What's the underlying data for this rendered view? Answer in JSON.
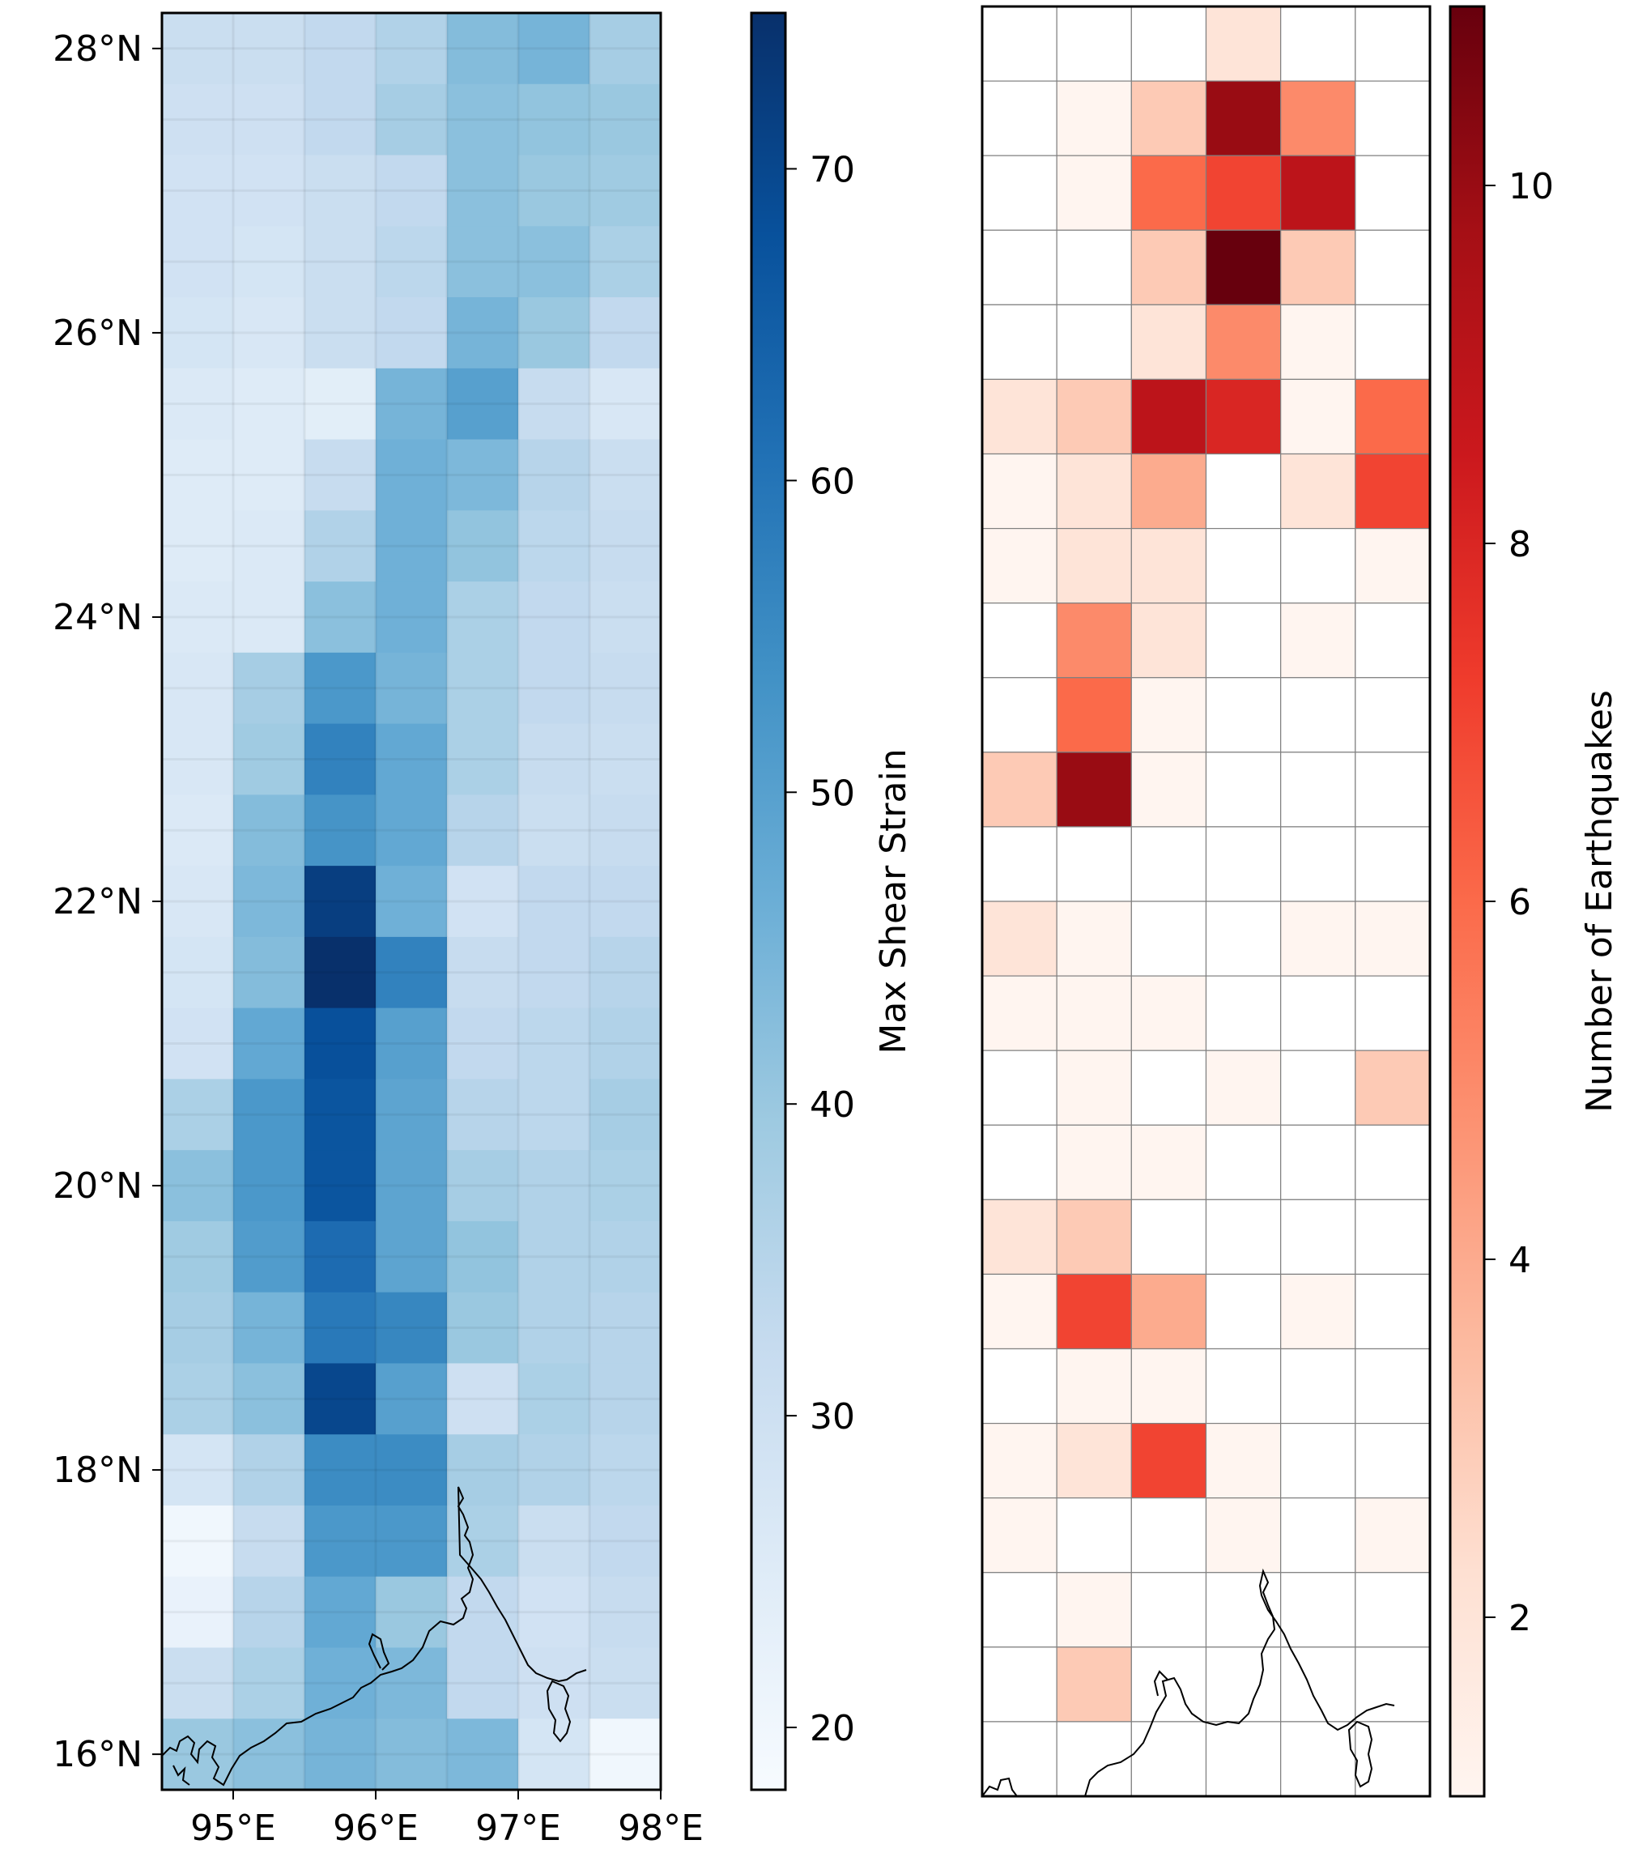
{
  "chart_data": [
    {
      "type": "heatmap",
      "xlabel": "",
      "ylabel": "",
      "x_ticks": [
        "95°E",
        "96°E",
        "97°E",
        "98°E"
      ],
      "y_ticks": [
        "16°N",
        "18°N",
        "20°N",
        "22°N",
        "24°N",
        "26°N",
        "28°N"
      ],
      "xlim": [
        94.5,
        98.0
      ],
      "ylim": [
        15.75,
        28.25
      ],
      "colorbar": {
        "label": "Max Shear Strain",
        "range": [
          18,
          75
        ],
        "ticks": [
          20,
          30,
          40,
          50,
          60,
          70
        ],
        "cmap": "Blues"
      },
      "cell_size_deg": 0.5,
      "rows_top_to_bottom": [
        [
          31,
          31,
          33,
          36,
          43,
          45,
          38
        ],
        [
          30,
          30,
          33,
          38,
          42,
          41,
          40
        ],
        [
          29,
          29,
          31,
          33,
          42,
          40,
          39
        ],
        [
          29,
          28,
          31,
          34,
          42,
          42,
          37
        ],
        [
          28,
          27,
          31,
          33,
          45,
          40,
          33
        ],
        [
          26,
          25,
          24,
          45,
          50,
          32,
          27
        ],
        [
          25,
          25,
          32,
          46,
          44,
          35,
          31
        ],
        [
          25,
          26,
          36,
          46,
          41,
          34,
          32
        ],
        [
          26,
          26,
          42,
          46,
          37,
          33,
          31
        ],
        [
          27,
          38,
          52,
          45,
          37,
          33,
          32
        ],
        [
          27,
          39,
          57,
          48,
          37,
          32,
          31
        ],
        [
          26,
          43,
          53,
          48,
          35,
          31,
          32
        ],
        [
          27,
          44,
          72,
          46,
          29,
          33,
          33
        ],
        [
          28,
          43,
          75,
          57,
          32,
          33,
          35
        ],
        [
          29,
          48,
          68,
          50,
          33,
          34,
          36
        ],
        [
          37,
          52,
          67,
          49,
          35,
          34,
          38
        ],
        [
          42,
          52,
          67,
          49,
          38,
          36,
          37
        ],
        [
          39,
          51,
          62,
          49,
          41,
          36,
          36
        ],
        [
          38,
          45,
          59,
          56,
          40,
          36,
          35
        ],
        [
          37,
          42,
          70,
          50,
          30,
          37,
          35
        ],
        [
          28,
          36,
          55,
          55,
          38,
          36,
          34
        ],
        [
          20,
          32,
          52,
          52,
          37,
          31,
          33
        ],
        [
          22,
          35,
          48,
          40,
          33,
          29,
          32
        ],
        [
          31,
          37,
          46,
          44,
          33,
          30,
          31
        ],
        [
          40,
          42,
          45,
          43,
          44,
          28,
          20
        ]
      ]
    },
    {
      "type": "heatmap",
      "xlabel": "",
      "ylabel": "",
      "colorbar": {
        "label": "Number of Earthquakes",
        "range": [
          1,
          11
        ],
        "ticks": [
          2,
          4,
          6,
          8,
          10
        ],
        "cmap": "Reds"
      },
      "cell_size_deg": 0.5,
      "rows_top_to_bottom": [
        [
          0,
          0,
          0,
          2,
          0,
          0
        ],
        [
          0,
          1,
          3,
          10,
          5,
          0
        ],
        [
          0,
          1,
          6,
          7,
          9,
          0
        ],
        [
          0,
          0,
          3,
          11,
          3,
          0
        ],
        [
          0,
          0,
          2,
          5,
          1,
          0
        ],
        [
          2,
          3,
          9,
          8,
          1,
          6
        ],
        [
          1,
          2,
          4,
          0,
          2,
          7
        ],
        [
          1,
          2,
          2,
          0,
          0,
          1
        ],
        [
          0,
          5,
          2,
          0,
          1,
          0
        ],
        [
          0,
          6,
          1,
          0,
          0,
          0
        ],
        [
          3,
          10,
          1,
          0,
          0,
          0
        ],
        [
          0,
          0,
          0,
          0,
          0,
          0
        ],
        [
          2,
          1,
          0,
          0,
          1,
          1
        ],
        [
          1,
          1,
          1,
          0,
          0,
          0
        ],
        [
          0,
          1,
          0,
          1,
          0,
          3
        ],
        [
          0,
          1,
          1,
          0,
          0,
          0
        ],
        [
          2,
          3,
          0,
          0,
          0,
          0
        ],
        [
          1,
          7,
          4,
          0,
          1,
          0
        ],
        [
          0,
          1,
          1,
          0,
          0,
          0
        ],
        [
          1,
          2,
          7,
          1,
          0,
          0
        ],
        [
          1,
          0,
          0,
          1,
          0,
          1
        ],
        [
          0,
          1,
          0,
          0,
          0,
          0
        ],
        [
          0,
          3,
          0,
          0,
          0,
          0
        ],
        [
          0,
          0,
          0,
          0,
          0,
          0
        ]
      ]
    }
  ],
  "colors": {
    "blues": [
      "#f7fbff",
      "#deebf7",
      "#c6dbef",
      "#9ecae1",
      "#6baed6",
      "#4292c6",
      "#2171b5",
      "#08519c",
      "#08306b"
    ],
    "reds": [
      "#fff5f0",
      "#fee0d2",
      "#fcbba1",
      "#fc9272",
      "#fb6a4a",
      "#ef3b2c",
      "#cb181d",
      "#a50f15",
      "#67000d"
    ],
    "coastline": "#000000",
    "grid": "#808080"
  }
}
